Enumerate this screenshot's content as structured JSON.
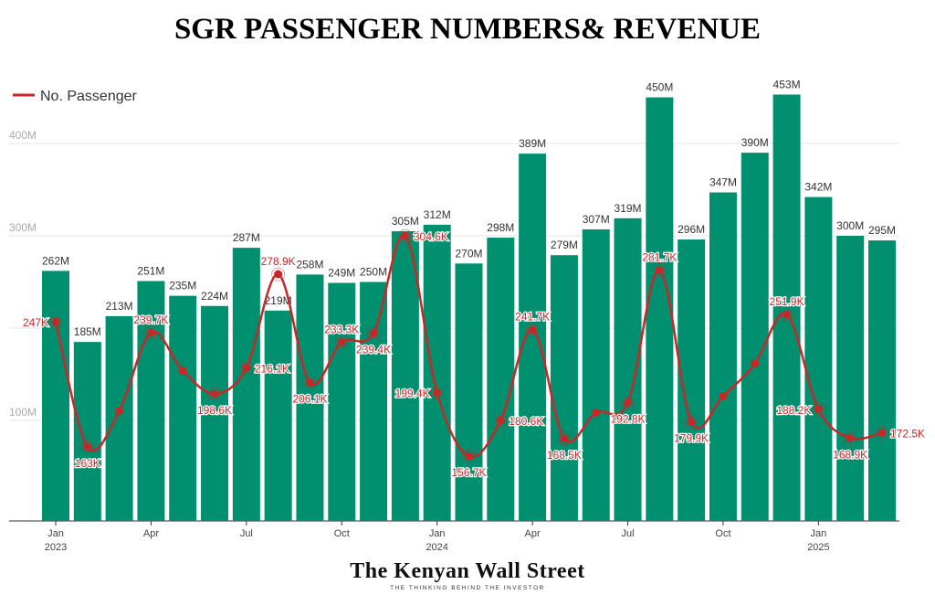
{
  "title": "SGR PASSENGER NUMBERS& REVENUE",
  "logo": {
    "name": "The Kenyan Wall Street",
    "tagline": "THE THINKING BEHIND THE INVESTOR"
  },
  "chart_data": {
    "type": "bar+line",
    "title": "SGR PASSENGER NUMBERS& REVENUE",
    "categories": [
      "Jan 2023",
      "Feb 2023",
      "Mar 2023",
      "Apr 2023",
      "May 2023",
      "Jun 2023",
      "Jul 2023",
      "Aug 2023",
      "Sep 2023",
      "Oct 2023",
      "Nov 2023",
      "Dec 2023",
      "Jan 2024",
      "Feb 2024",
      "Mar 2024",
      "Apr 2024",
      "May 2024",
      "Jun 2024",
      "Jul 2024",
      "Aug 2024",
      "Sep 2024",
      "Oct 2024",
      "Nov 2024",
      "Dec 2024",
      "Jan 2025",
      "Feb 2025",
      "Mar 2025"
    ],
    "x_tick_labels": [
      {
        "index": 0,
        "month": "Jan",
        "year": "2023"
      },
      {
        "index": 3,
        "month": "Apr",
        "year": ""
      },
      {
        "index": 6,
        "month": "Jul",
        "year": ""
      },
      {
        "index": 9,
        "month": "Oct",
        "year": ""
      },
      {
        "index": 12,
        "month": "Jan",
        "year": "2024"
      },
      {
        "index": 15,
        "month": "Apr",
        "year": ""
      },
      {
        "index": 18,
        "month": "Jul",
        "year": ""
      },
      {
        "index": 21,
        "month": "Oct",
        "year": ""
      },
      {
        "index": 24,
        "month": "Jan",
        "year": "2025"
      }
    ],
    "left_axis": {
      "ticks": [
        "100M",
        "",
        "300M",
        "400M"
      ],
      "tick_values": [
        100,
        200,
        300,
        400
      ],
      "unit": "M",
      "ylim": [
        0,
        460
      ]
    },
    "bars": {
      "unit": "M",
      "values": [
        262,
        185,
        213,
        251,
        235,
        224,
        287,
        219,
        258,
        249,
        250,
        305,
        312,
        270,
        298,
        389,
        279,
        307,
        319,
        450,
        296,
        347,
        390,
        453,
        342,
        300,
        295
      ],
      "labels": [
        "262M",
        "185M",
        "213M",
        "251M",
        "235M",
        "224M",
        "287M",
        "219M",
        "258M",
        "249M",
        "250M",
        "305M",
        "312M",
        "270M",
        "298M",
        "389M",
        "279M",
        "307M",
        "319M",
        "450M",
        "296M",
        "347M",
        "390M",
        "453M",
        "342M",
        "300M",
        "295M"
      ],
      "color": "#00906f"
    },
    "line": {
      "name": "No. Passenger",
      "unit": "K",
      "values": [
        247,
        163,
        187,
        239.7,
        214,
        198.6,
        216.1,
        278.9,
        206.1,
        233.3,
        239.4,
        304.6,
        199.4,
        156.7,
        180.6,
        241.7,
        168.5,
        186,
        192.8,
        281.7,
        179.9,
        197,
        219,
        251.9,
        188.2,
        168.9,
        172.5
      ],
      "labels": [
        "247K",
        "163K",
        "",
        "239.7K",
        "",
        "198.6K",
        "216.1K",
        "278.9K",
        "206.1K",
        "233.3K",
        "239.4K",
        "304.6K",
        "199.4K",
        "156.7K",
        "180.6K",
        "241.7K",
        "168.5K",
        "",
        "192.8K",
        "281.7K",
        "179.9K",
        "",
        "",
        "251.9K",
        "188.2K",
        "168.9K",
        "172.5K"
      ],
      "label_pos": [
        "left",
        "below",
        "",
        "above",
        "",
        "below",
        "right",
        "above",
        "below",
        "above",
        "below",
        "right",
        "left",
        "below",
        "right",
        "above",
        "below",
        "",
        "below",
        "above",
        "below",
        "",
        "",
        "above",
        "left",
        "below",
        "right"
      ],
      "color": "#c62828"
    },
    "legend": {
      "position": "top-left",
      "entries": [
        "No. Passenger"
      ]
    },
    "grid": true
  }
}
